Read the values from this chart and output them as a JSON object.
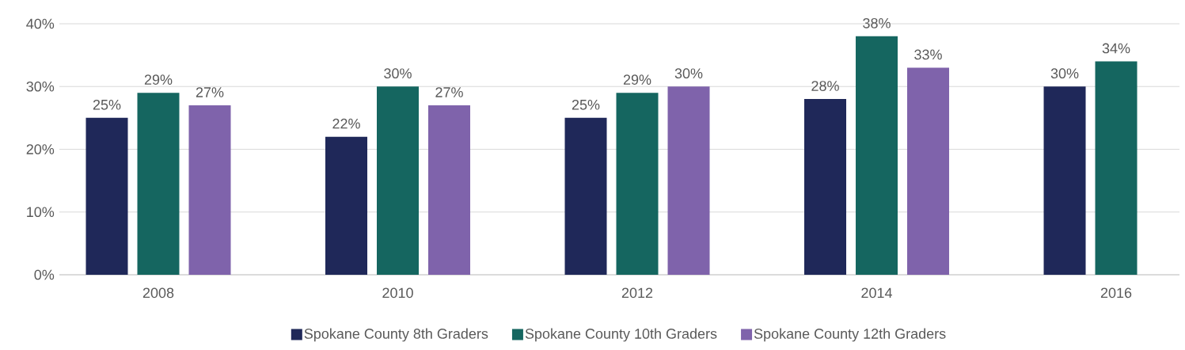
{
  "chart_data": {
    "type": "bar",
    "categories": [
      "2008",
      "2010",
      "2012",
      "2014",
      "2016"
    ],
    "series": [
      {
        "name": "Spokane County 8th Graders",
        "color": "#1f2859",
        "values": [
          25,
          22,
          25,
          28,
          30
        ],
        "value_labels": [
          "25%",
          "22%",
          "25%",
          "28%",
          "30%"
        ]
      },
      {
        "name": "Spokane County 10th Graders",
        "color": "#156660",
        "values": [
          29,
          30,
          29,
          38,
          34
        ],
        "value_labels": [
          "29%",
          "30%",
          "29%",
          "38%",
          "34%"
        ]
      },
      {
        "name": "Spokane County 12th Graders",
        "color": "#7f63ab",
        "values": [
          27,
          27,
          30,
          33,
          null
        ],
        "value_labels": [
          "27%",
          "27%",
          "30%",
          "33%",
          null
        ]
      }
    ],
    "ylim": [
      0,
      40
    ],
    "yticks": [
      {
        "value": 0,
        "label": "0%"
      },
      {
        "value": 10,
        "label": "10%"
      },
      {
        "value": 20,
        "label": "20%"
      },
      {
        "value": 30,
        "label": "30%"
      },
      {
        "value": 40,
        "label": "40%"
      }
    ],
    "grid": "y",
    "legend": "bottom"
  }
}
